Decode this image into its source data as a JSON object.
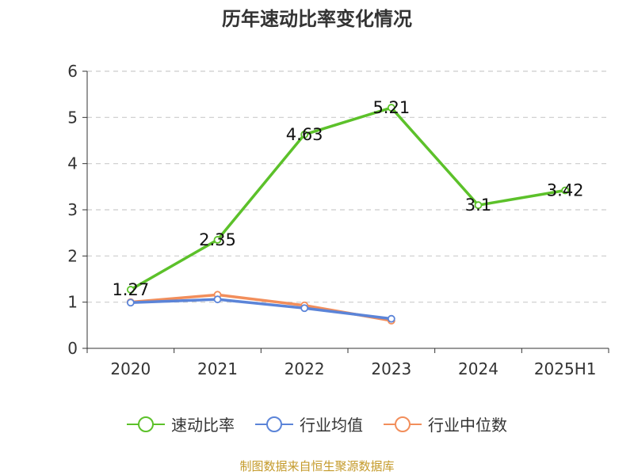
{
  "title": "历年速动比率变化情况",
  "source": "制图数据来自恒生聚源数据库",
  "colors": {
    "series1": "#5cc12a",
    "series2": "#5b84d8",
    "series3": "#f28e5b",
    "grid": "#cccccc",
    "axis": "#333333"
  },
  "chart_data": {
    "type": "line",
    "categories": [
      "2020",
      "2021",
      "2022",
      "2023",
      "2024",
      "2025H1"
    ],
    "ylim": [
      0,
      6
    ],
    "yticks": [
      0,
      1,
      2,
      3,
      4,
      5,
      6
    ],
    "grid": true,
    "legend_position": "bottom",
    "series": [
      {
        "name": "速动比率",
        "values": [
          1.27,
          2.35,
          4.63,
          5.21,
          3.1,
          3.42
        ],
        "labels": [
          "1.27",
          "2.35",
          "4.63",
          "5.21",
          "3.1",
          "3.42"
        ]
      },
      {
        "name": "行业均值",
        "values": [
          0.99,
          1.06,
          0.87,
          0.64,
          null,
          null
        ]
      },
      {
        "name": "行业中位数",
        "values": [
          1.0,
          1.16,
          0.93,
          0.6,
          null,
          null
        ]
      }
    ]
  }
}
